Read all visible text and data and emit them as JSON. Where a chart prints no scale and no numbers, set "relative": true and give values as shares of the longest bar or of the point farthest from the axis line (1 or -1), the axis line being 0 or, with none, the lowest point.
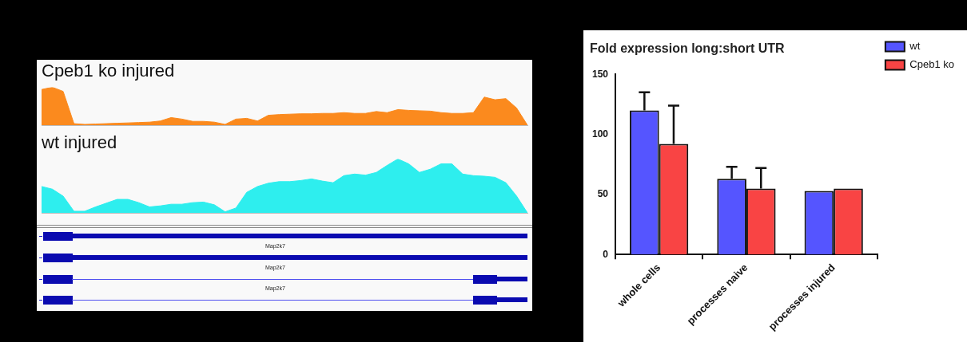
{
  "chart_data": [
    {
      "type": "area",
      "title": "Cpeb1 ko injured",
      "relative": true,
      "color": "#fb8a1e",
      "categories": [
        null,
        null,
        null,
        null,
        null,
        null,
        null,
        null,
        null,
        null,
        null,
        null,
        null,
        null,
        null,
        null,
        null,
        null,
        null,
        null,
        null,
        null,
        null,
        null,
        null,
        null,
        null,
        null,
        null,
        null,
        null,
        null,
        null,
        null,
        null,
        null,
        null,
        null,
        null,
        null,
        null,
        null,
        null,
        null,
        null,
        null
      ],
      "values": [
        0.94,
        1,
        0.89,
        0.04,
        0.02,
        0.03,
        0.04,
        0.05,
        0.06,
        0.07,
        0.08,
        0.11,
        0.2,
        0.16,
        0.1,
        0.1,
        0.08,
        0.02,
        0.16,
        0.18,
        0.11,
        0.26,
        0.28,
        0.29,
        0.3,
        0.3,
        0.31,
        0.31,
        0.33,
        0.31,
        0.31,
        0.36,
        0.33,
        0.41,
        0.39,
        0.38,
        0.37,
        0.33,
        0.31,
        0.31,
        0.33,
        0.74,
        0.67,
        0.7,
        0.45,
        0
      ]
    },
    {
      "type": "area",
      "title": "wt injured",
      "relative": true,
      "color": "#2eeeee",
      "categories": [
        null,
        null,
        null,
        null,
        null,
        null,
        null,
        null,
        null,
        null,
        null,
        null,
        null,
        null,
        null,
        null,
        null,
        null,
        null,
        null,
        null,
        null,
        null,
        null,
        null,
        null,
        null,
        null,
        null,
        null,
        null,
        null,
        null,
        null,
        null,
        null,
        null,
        null,
        null,
        null,
        null,
        null,
        null,
        null,
        null,
        null
      ],
      "values": [
        0.49,
        0.44,
        0.31,
        0.03,
        0.03,
        0.11,
        0.18,
        0.25,
        0.25,
        0.19,
        0.11,
        0.13,
        0.16,
        0.16,
        0.19,
        0.2,
        0.15,
        0.02,
        0.09,
        0.38,
        0.49,
        0.55,
        0.58,
        0.58,
        0.6,
        0.63,
        0.59,
        0.56,
        0.69,
        0.72,
        0.7,
        0.75,
        0.88,
        1,
        0.91,
        0.75,
        0.81,
        0.91,
        0.91,
        0.72,
        0.69,
        0.68,
        0.66,
        0.56,
        0.31,
        0
      ]
    },
    {
      "type": "other",
      "annotations": [
        "Map2k7",
        "Map2k7",
        "Map2k7"
      ]
    },
    {
      "type": "bar",
      "title": "Fold expression long:short UTR",
      "categories": [
        "whole cells",
        "processes naive",
        "processes injured"
      ],
      "series": [
        {
          "name": "wt",
          "color": "#5555ff",
          "values": [
            120,
            63,
            53
          ],
          "errors": [
            [
              120,
              135
            ],
            [
              63,
              73
            ],
            null
          ]
        },
        {
          "name": "Cpeb1 ko",
          "color": "#f94444",
          "values": [
            92,
            55,
            55
          ],
          "errors": [
            [
              92,
              124
            ],
            [
              55,
              72
            ],
            null
          ]
        }
      ],
      "ylim": [
        0,
        150
      ],
      "yticks": [
        0,
        50,
        100,
        150
      ],
      "legend": "top right"
    }
  ]
}
